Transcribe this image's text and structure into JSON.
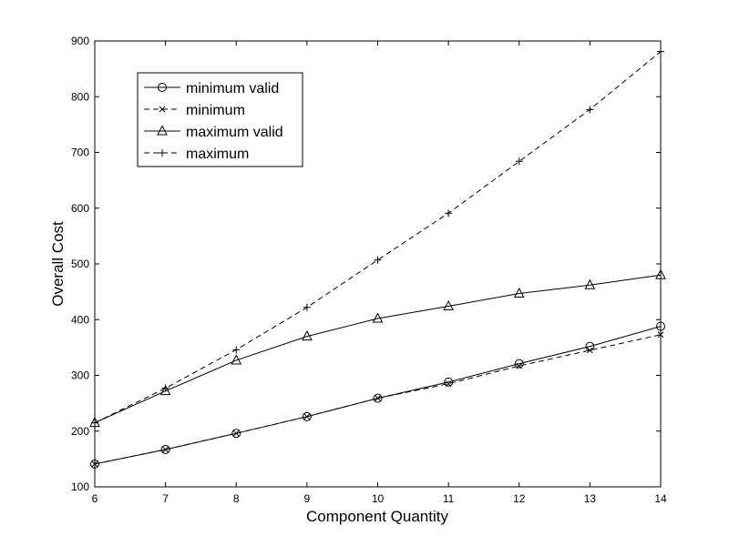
{
  "chart_data": {
    "type": "line",
    "title": "",
    "xlabel": "Component Quantity",
    "ylabel": "Overall Cost",
    "xlim": [
      6,
      14
    ],
    "ylim": [
      100,
      900
    ],
    "xticks": [
      "6",
      "7",
      "8",
      "9",
      "10",
      "11",
      "12",
      "13",
      "14"
    ],
    "yticks": [
      "100",
      "200",
      "300",
      "400",
      "500",
      "600",
      "700",
      "800",
      "900"
    ],
    "grid": false,
    "legend_position": "top-left",
    "x": [
      6,
      7,
      8,
      9,
      10,
      11,
      12,
      13,
      14
    ],
    "series": [
      {
        "name": "minimum valid",
        "values": [
          141,
          167,
          196,
          226,
          259,
          288,
          321,
          352,
          388
        ],
        "marker": "circle",
        "line": "solid"
      },
      {
        "name": "minimum",
        "values": [
          141,
          167,
          196,
          226,
          259,
          285,
          317,
          345,
          373
        ],
        "marker": "x",
        "line": "dashed"
      },
      {
        "name": "maximum valid",
        "values": [
          215,
          272,
          327,
          370,
          402,
          424,
          447,
          462,
          480
        ],
        "marker": "triangle",
        "line": "solid"
      },
      {
        "name": "maximum",
        "values": [
          215,
          277,
          346,
          422,
          507,
          591,
          684,
          777,
          881
        ],
        "marker": "plus",
        "line": "dashed"
      }
    ]
  }
}
